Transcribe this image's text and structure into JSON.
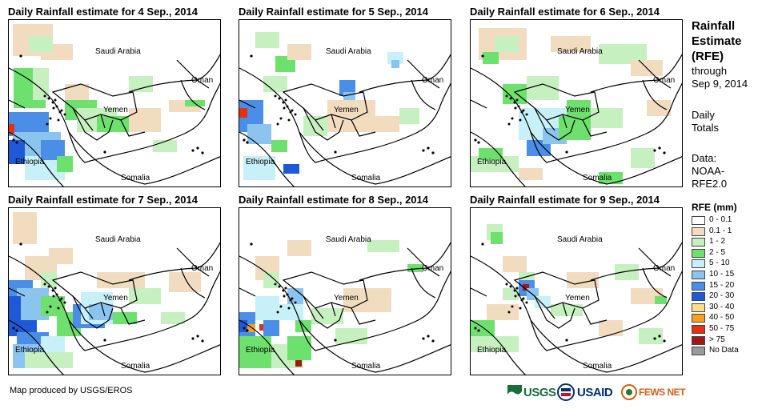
{
  "panels": [
    {
      "title": "Daily Rainfall estimate for 4 Sep., 2014"
    },
    {
      "title": "Daily Rainfall estimate for 5 Sep., 2014"
    },
    {
      "title": "Daily Rainfall estimate for 6 Sep., 2014"
    },
    {
      "title": "Daily Rainfall estimate for 7 Sep., 2014"
    },
    {
      "title": "Daily Rainfall estimate for 8 Sep., 2014"
    },
    {
      "title": "Daily Rainfall estimate for 9 Sep., 2014"
    }
  ],
  "map_labels": {
    "saudi_arabia": "Saudi Arabia",
    "oman": "Oman",
    "yemen": "Yemen",
    "ethiopia": "Ethiopia",
    "somalia": "Somalia"
  },
  "legend": {
    "title_lines": [
      "Rainfall",
      "Estimate",
      "(RFE)"
    ],
    "through": "through",
    "date": "Sep 9, 2014",
    "daily": "Daily",
    "totals": "Totals",
    "data_label": "Data:",
    "data_src1": "NOAA-",
    "data_src2": "RFE2.0",
    "heading": "RFE (mm)",
    "classes": [
      {
        "label": "0 - 0.1",
        "color": "#ffffff"
      },
      {
        "label": "0.1 - 1",
        "color": "#f2dcc0"
      },
      {
        "label": "1 - 2",
        "color": "#c6f0c0"
      },
      {
        "label": "2 - 5",
        "color": "#6ee06e"
      },
      {
        "label": "5 - 10",
        "color": "#c8f0f8"
      },
      {
        "label": "10 - 15",
        "color": "#8cc4f0"
      },
      {
        "label": "15 - 20",
        "color": "#4a8ee8"
      },
      {
        "label": "20 - 30",
        "color": "#1e5ad8"
      },
      {
        "label": "30 - 40",
        "color": "#f8e08a"
      },
      {
        "label": "40 - 50",
        "color": "#f4a020"
      },
      {
        "label": "50 - 75",
        "color": "#e83010"
      },
      {
        "label": "> 75",
        "color": "#a01818"
      },
      {
        "label": "No Data",
        "color": "#9a9a9a"
      }
    ]
  },
  "footer": {
    "credit": "Map produced by USGS/EROS",
    "logos": {
      "usgs": "USGS",
      "usaid": "USAID",
      "fewsnet": "FEWS NET"
    }
  },
  "colors": {
    "usgs_green": "#1a6e3a",
    "usaid_blue": "#002f6c",
    "usaid_red": "#c8102e",
    "fewsnet_orange": "#d0601a"
  }
}
